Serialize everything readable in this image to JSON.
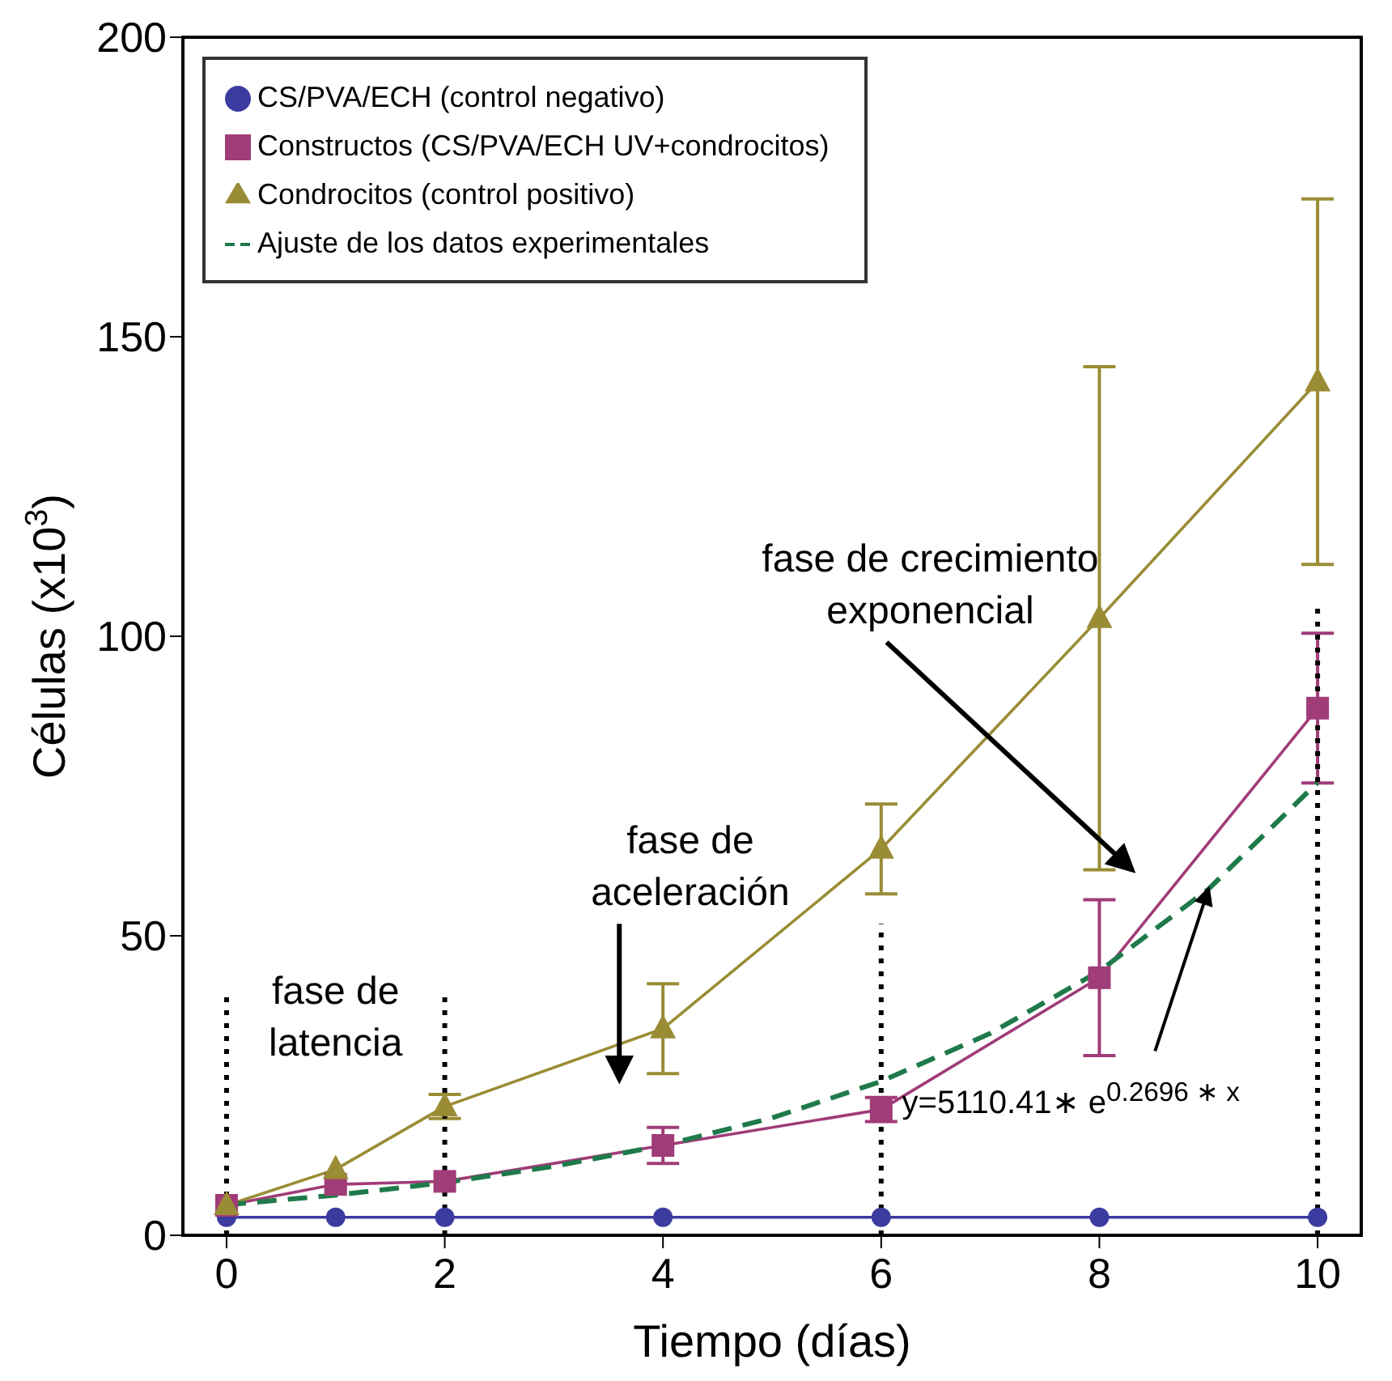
{
  "chart_data": {
    "type": "line",
    "xlabel": "Tiempo (días)",
    "ylabel": "Células (x10$^{3}$)",
    "xlim": [
      -0.4,
      10.4
    ],
    "ylim": [
      0,
      200
    ],
    "xticks": [
      0,
      2,
      4,
      6,
      8,
      10
    ],
    "yticks": [
      0,
      50,
      100,
      150,
      200
    ],
    "grid": false,
    "legend": "top left",
    "series": [
      {
        "name": "CS/PVA/ECH (control negativo)",
        "color": "#3b3ba0",
        "marker": "circle",
        "line_style": "solid",
        "x": [
          0,
          1,
          2,
          4,
          6,
          8,
          10
        ],
        "values": [
          3,
          3,
          3,
          3,
          3,
          3,
          3
        ]
      },
      {
        "name": "Constructos (CS/PVA/ECH UV+condrocitos)",
        "color": "#a03c78",
        "marker": "square",
        "line_style": "solid",
        "x": [
          0,
          1,
          2,
          4,
          6,
          8,
          10
        ],
        "values": [
          5,
          8.5,
          9,
          15,
          21,
          43,
          88
        ],
        "errors": [
          null,
          null,
          null,
          3,
          2,
          13,
          12.5
        ]
      },
      {
        "name": "Condrocitos (control positivo)",
        "color": "#9a8c35",
        "marker": "triangle",
        "line_style": "solid",
        "x": [
          0,
          1,
          2,
          4,
          6,
          8,
          10
        ],
        "values": [
          5,
          11,
          21.5,
          34.5,
          64.5,
          103,
          142.5
        ],
        "errors": [
          null,
          null,
          2,
          7.5,
          7.5,
          42,
          30.5
        ]
      },
      {
        "name": "Ajuste de los datos experimentales",
        "color": "#1e7a4a",
        "marker": "none",
        "line_style": "dashed",
        "x": [
          0,
          1,
          2,
          3,
          4,
          5,
          6,
          7,
          8,
          9,
          10
        ],
        "values": [
          5.1,
          6.7,
          8.8,
          11.5,
          15,
          19.6,
          25.7,
          33.7,
          44.1,
          57.8,
          75.6
        ]
      },
      {
        "color": "#000000",
        "marker": "none",
        "line_style": "dotted",
        "x": [
          0,
          0
        ],
        "values": [
          0,
          40
        ]
      },
      {
        "color": "#000000",
        "marker": "none",
        "line_style": "dotted",
        "x": [
          2,
          2
        ],
        "values": [
          0,
          40
        ]
      },
      {
        "color": "#000000",
        "marker": "none",
        "line_style": "dotted",
        "x": [
          6,
          6
        ],
        "values": [
          0,
          52
        ]
      },
      {
        "color": "#000000",
        "marker": "none",
        "line_style": "dotted",
        "x": [
          10,
          10
        ],
        "values": [
          0,
          105
        ]
      }
    ],
    "annotations": [
      "fase de latencia",
      "fase de aceleración",
      "fase de crecimiento exponencial",
      {
        "text": "y=5110.41∗ e$^{0.2696 ∗ x}$",
        "x": 9,
        "y": 57.8
      }
    ]
  }
}
